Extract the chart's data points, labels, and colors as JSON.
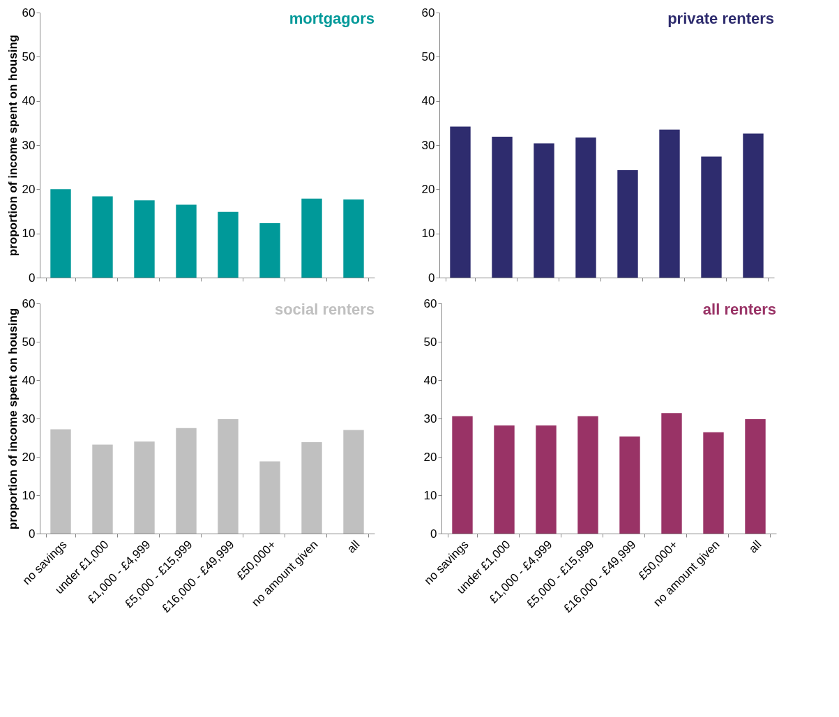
{
  "chart_data": [
    {
      "type": "bar",
      "title": "mortgagors",
      "ylabel": "proportion of income spent on housing",
      "categories": [
        null,
        null,
        null,
        null,
        null,
        null,
        null,
        null
      ],
      "values": [
        20.0,
        18.4,
        17.5,
        16.5,
        14.9,
        12.3,
        17.9,
        17.7
      ],
      "color": "#009999",
      "ylim": [
        0,
        60
      ],
      "yticks": [
        0,
        10,
        20,
        30,
        40,
        50,
        60
      ],
      "grid": false,
      "tick_labels": "y"
    },
    {
      "type": "bar",
      "title": "private renters",
      "categories": [
        null,
        null,
        null,
        null,
        null,
        null,
        null,
        null
      ],
      "values": [
        34.2,
        31.9,
        30.4,
        31.7,
        24.3,
        33.5,
        27.4,
        32.6
      ],
      "color": "#2e2c6e",
      "ylim": [
        0,
        60
      ],
      "yticks": [
        0,
        10,
        20,
        30,
        40,
        50,
        60
      ],
      "grid": false,
      "tick_labels": "y"
    },
    {
      "type": "bar",
      "title": "social renters",
      "ylabel": "proportion of income spent on housing",
      "categories": [
        "no savings",
        "under £1,000",
        "£1,000 - £4,999",
        "£5,000 - £15,999",
        "£16,000 - £49,999",
        "£50,000+",
        "no  amount given",
        "all"
      ],
      "values": [
        27.2,
        23.2,
        24.0,
        27.5,
        29.8,
        18.8,
        23.8,
        27.0
      ],
      "color": "#c0c0c0",
      "ylim": [
        0,
        60
      ],
      "yticks": [
        0,
        10,
        20,
        30,
        40,
        50,
        60
      ],
      "grid": false
    },
    {
      "type": "bar",
      "title": "all renters",
      "categories": [
        "no savings",
        "under £1,000",
        "£1,000 - £4,999",
        "£5,000 - £15,999",
        "£16,000 - £49,999",
        "£50,000+",
        "no  amount given",
        "all"
      ],
      "values": [
        30.6,
        28.2,
        28.2,
        30.6,
        25.3,
        31.4,
        26.4,
        29.8
      ],
      "color": "#993366",
      "ylim": [
        0,
        60
      ],
      "yticks": [
        0,
        10,
        20,
        30,
        40,
        50,
        60
      ],
      "grid": false
    }
  ]
}
